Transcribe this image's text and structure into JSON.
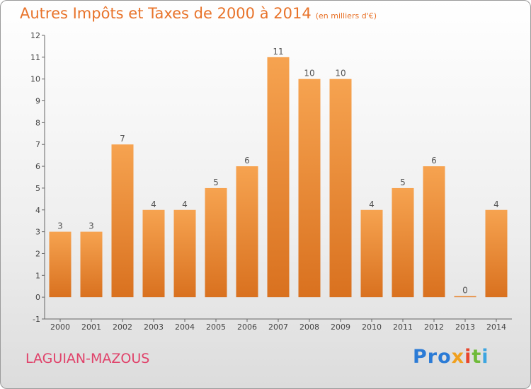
{
  "title": "Autres Impôts et Taxes de 2000 à 2014",
  "unit": "(en milliers d'€)",
  "town": "LAGUIAN-MAZOUS",
  "logo": {
    "p1": "Pro",
    "p2": "x",
    "p3": "i",
    "p4": "t",
    "p5": "i"
  },
  "colors": {
    "title": "#e8732a",
    "bar_top": "#f6a350",
    "bar_bottom": "#d9711f",
    "town": "#e0426a"
  },
  "chart_data": {
    "type": "bar",
    "categories": [
      "2000",
      "2001",
      "2002",
      "2003",
      "2004",
      "2005",
      "2006",
      "2007",
      "2008",
      "2009",
      "2010",
      "2011",
      "2012",
      "2013",
      "2014"
    ],
    "values": [
      3,
      3,
      7,
      4,
      4,
      5,
      6,
      11,
      10,
      10,
      4,
      5,
      6,
      0,
      4
    ],
    "ylim": [
      -1,
      12
    ],
    "yticks": [
      "-1",
      "0",
      "1",
      "2",
      "3",
      "4",
      "5",
      "6",
      "7",
      "8",
      "9",
      "10",
      "11",
      "12"
    ],
    "grid": false
  }
}
